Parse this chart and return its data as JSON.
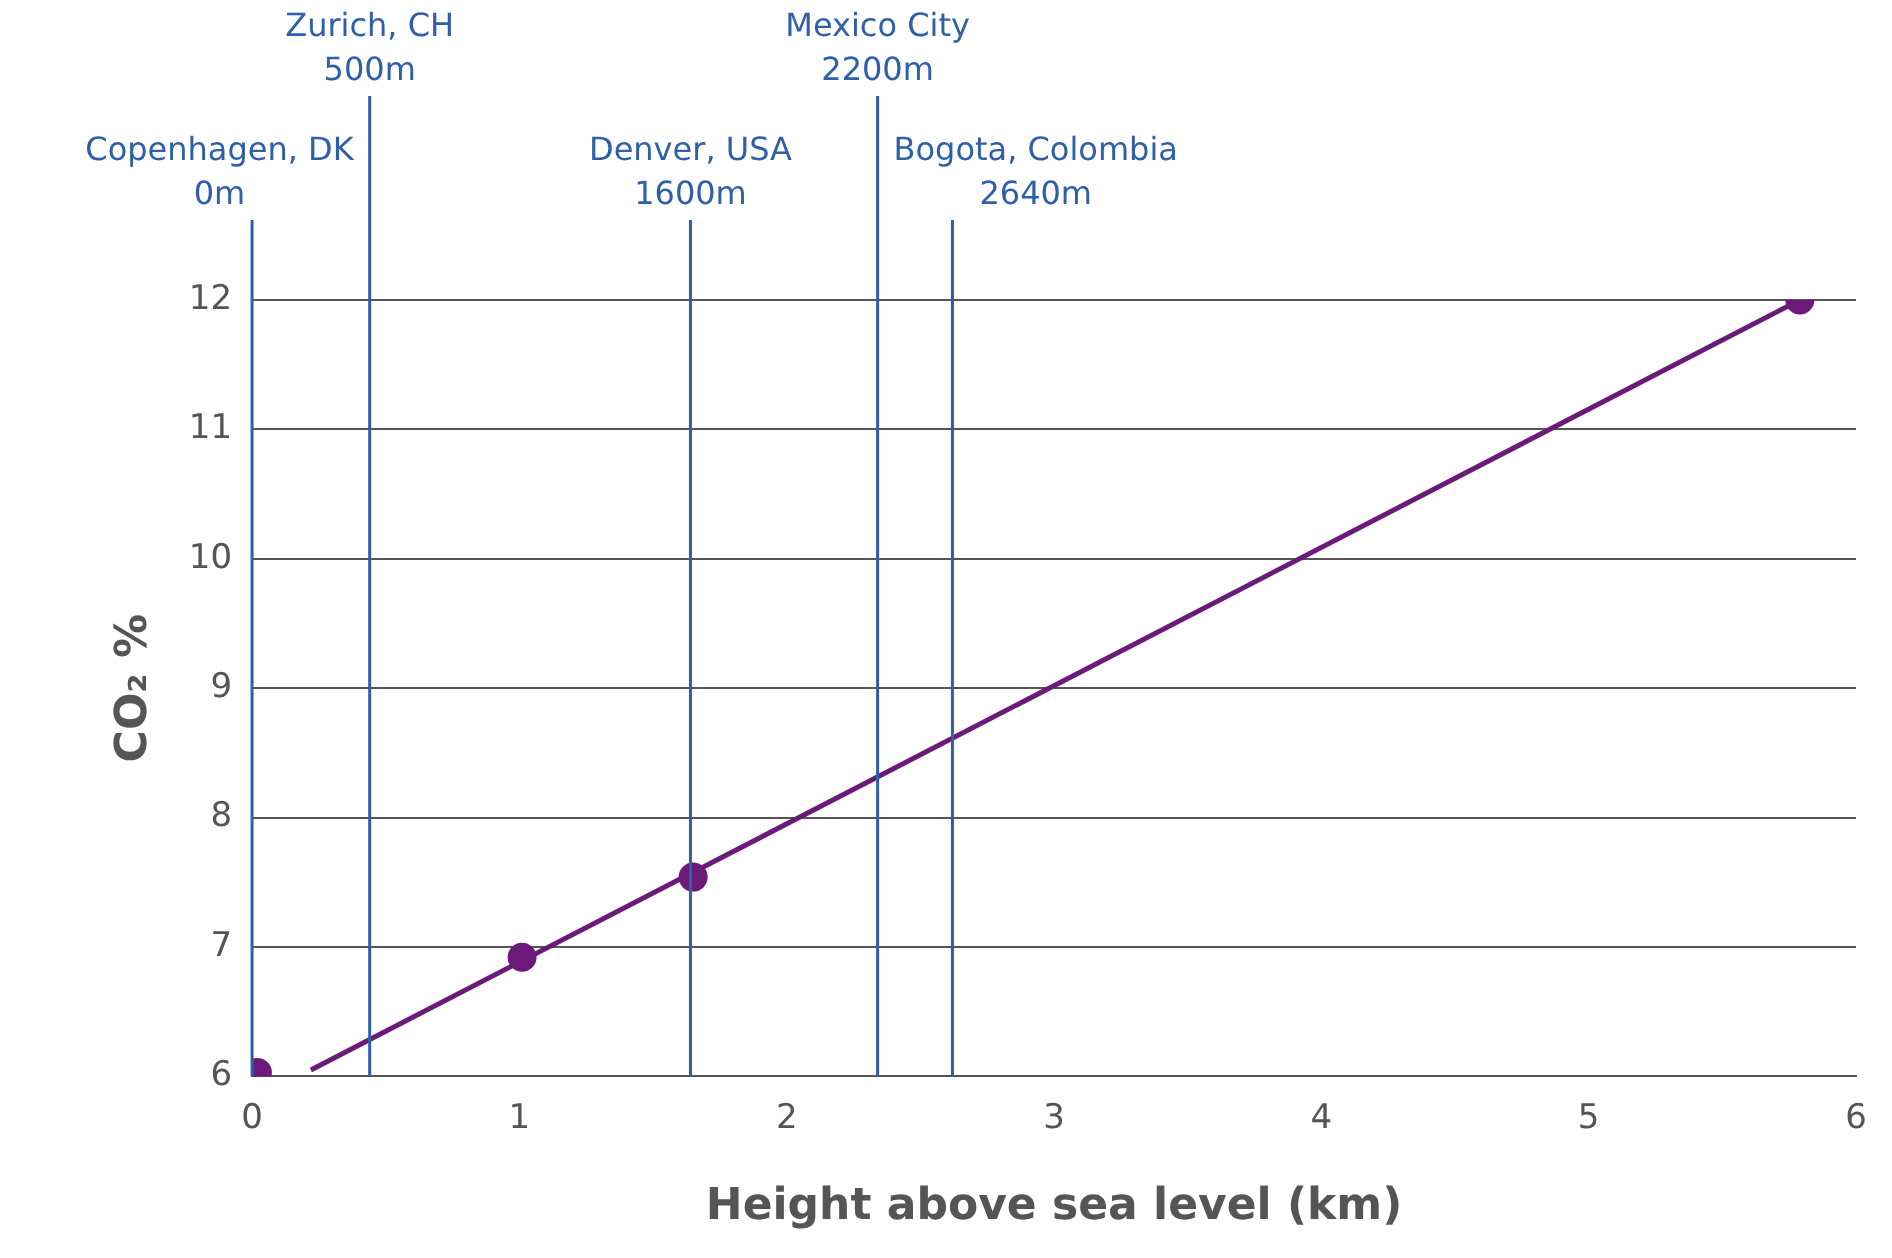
{
  "chart_data": {
    "type": "scatter",
    "xlabel": "Height above sea level (km)",
    "ylabel": "CO₂ %",
    "xlim": [
      0,
      6
    ],
    "xticks": [
      0,
      1,
      2,
      3,
      4,
      5,
      6
    ],
    "ylim": [
      6,
      12
    ],
    "yticks": [
      6,
      7,
      8,
      9,
      10,
      11,
      12
    ],
    "grid": "y",
    "legend": false,
    "marker": "circle",
    "series": [
      {
        "color": "#6b1a7a",
        "x": [
          0.02,
          1.01,
          1.65,
          5.79
        ],
        "values": [
          6.03,
          6.92,
          7.54,
          12
        ]
      },
      {
        "type": "line",
        "color": "#6b1a7a",
        "marker": "none",
        "x": [
          0.22,
          5.79
        ],
        "values": [
          6.05,
          12
        ]
      }
    ],
    "ref_lines": [
      {
        "axis": "x",
        "value": 0,
        "label": "Copenhagen, DK\n0m",
        "color": "#2f5fa8"
      },
      {
        "axis": "x",
        "value": 0.44,
        "label": "Zurich, CH\n500m",
        "color": "#2f5fa8"
      },
      {
        "axis": "x",
        "value": 1.64,
        "label": "Denver, USA\n1600m",
        "color": "#2f5fa8"
      },
      {
        "axis": "x",
        "value": 2.34,
        "label": "Mexico City\n2200m",
        "color": "#2f5fa8"
      },
      {
        "axis": "x",
        "value": 2.62,
        "label": "Bogota, Colombia\n2640m",
        "color": "#2f5fa8"
      }
    ]
  }
}
